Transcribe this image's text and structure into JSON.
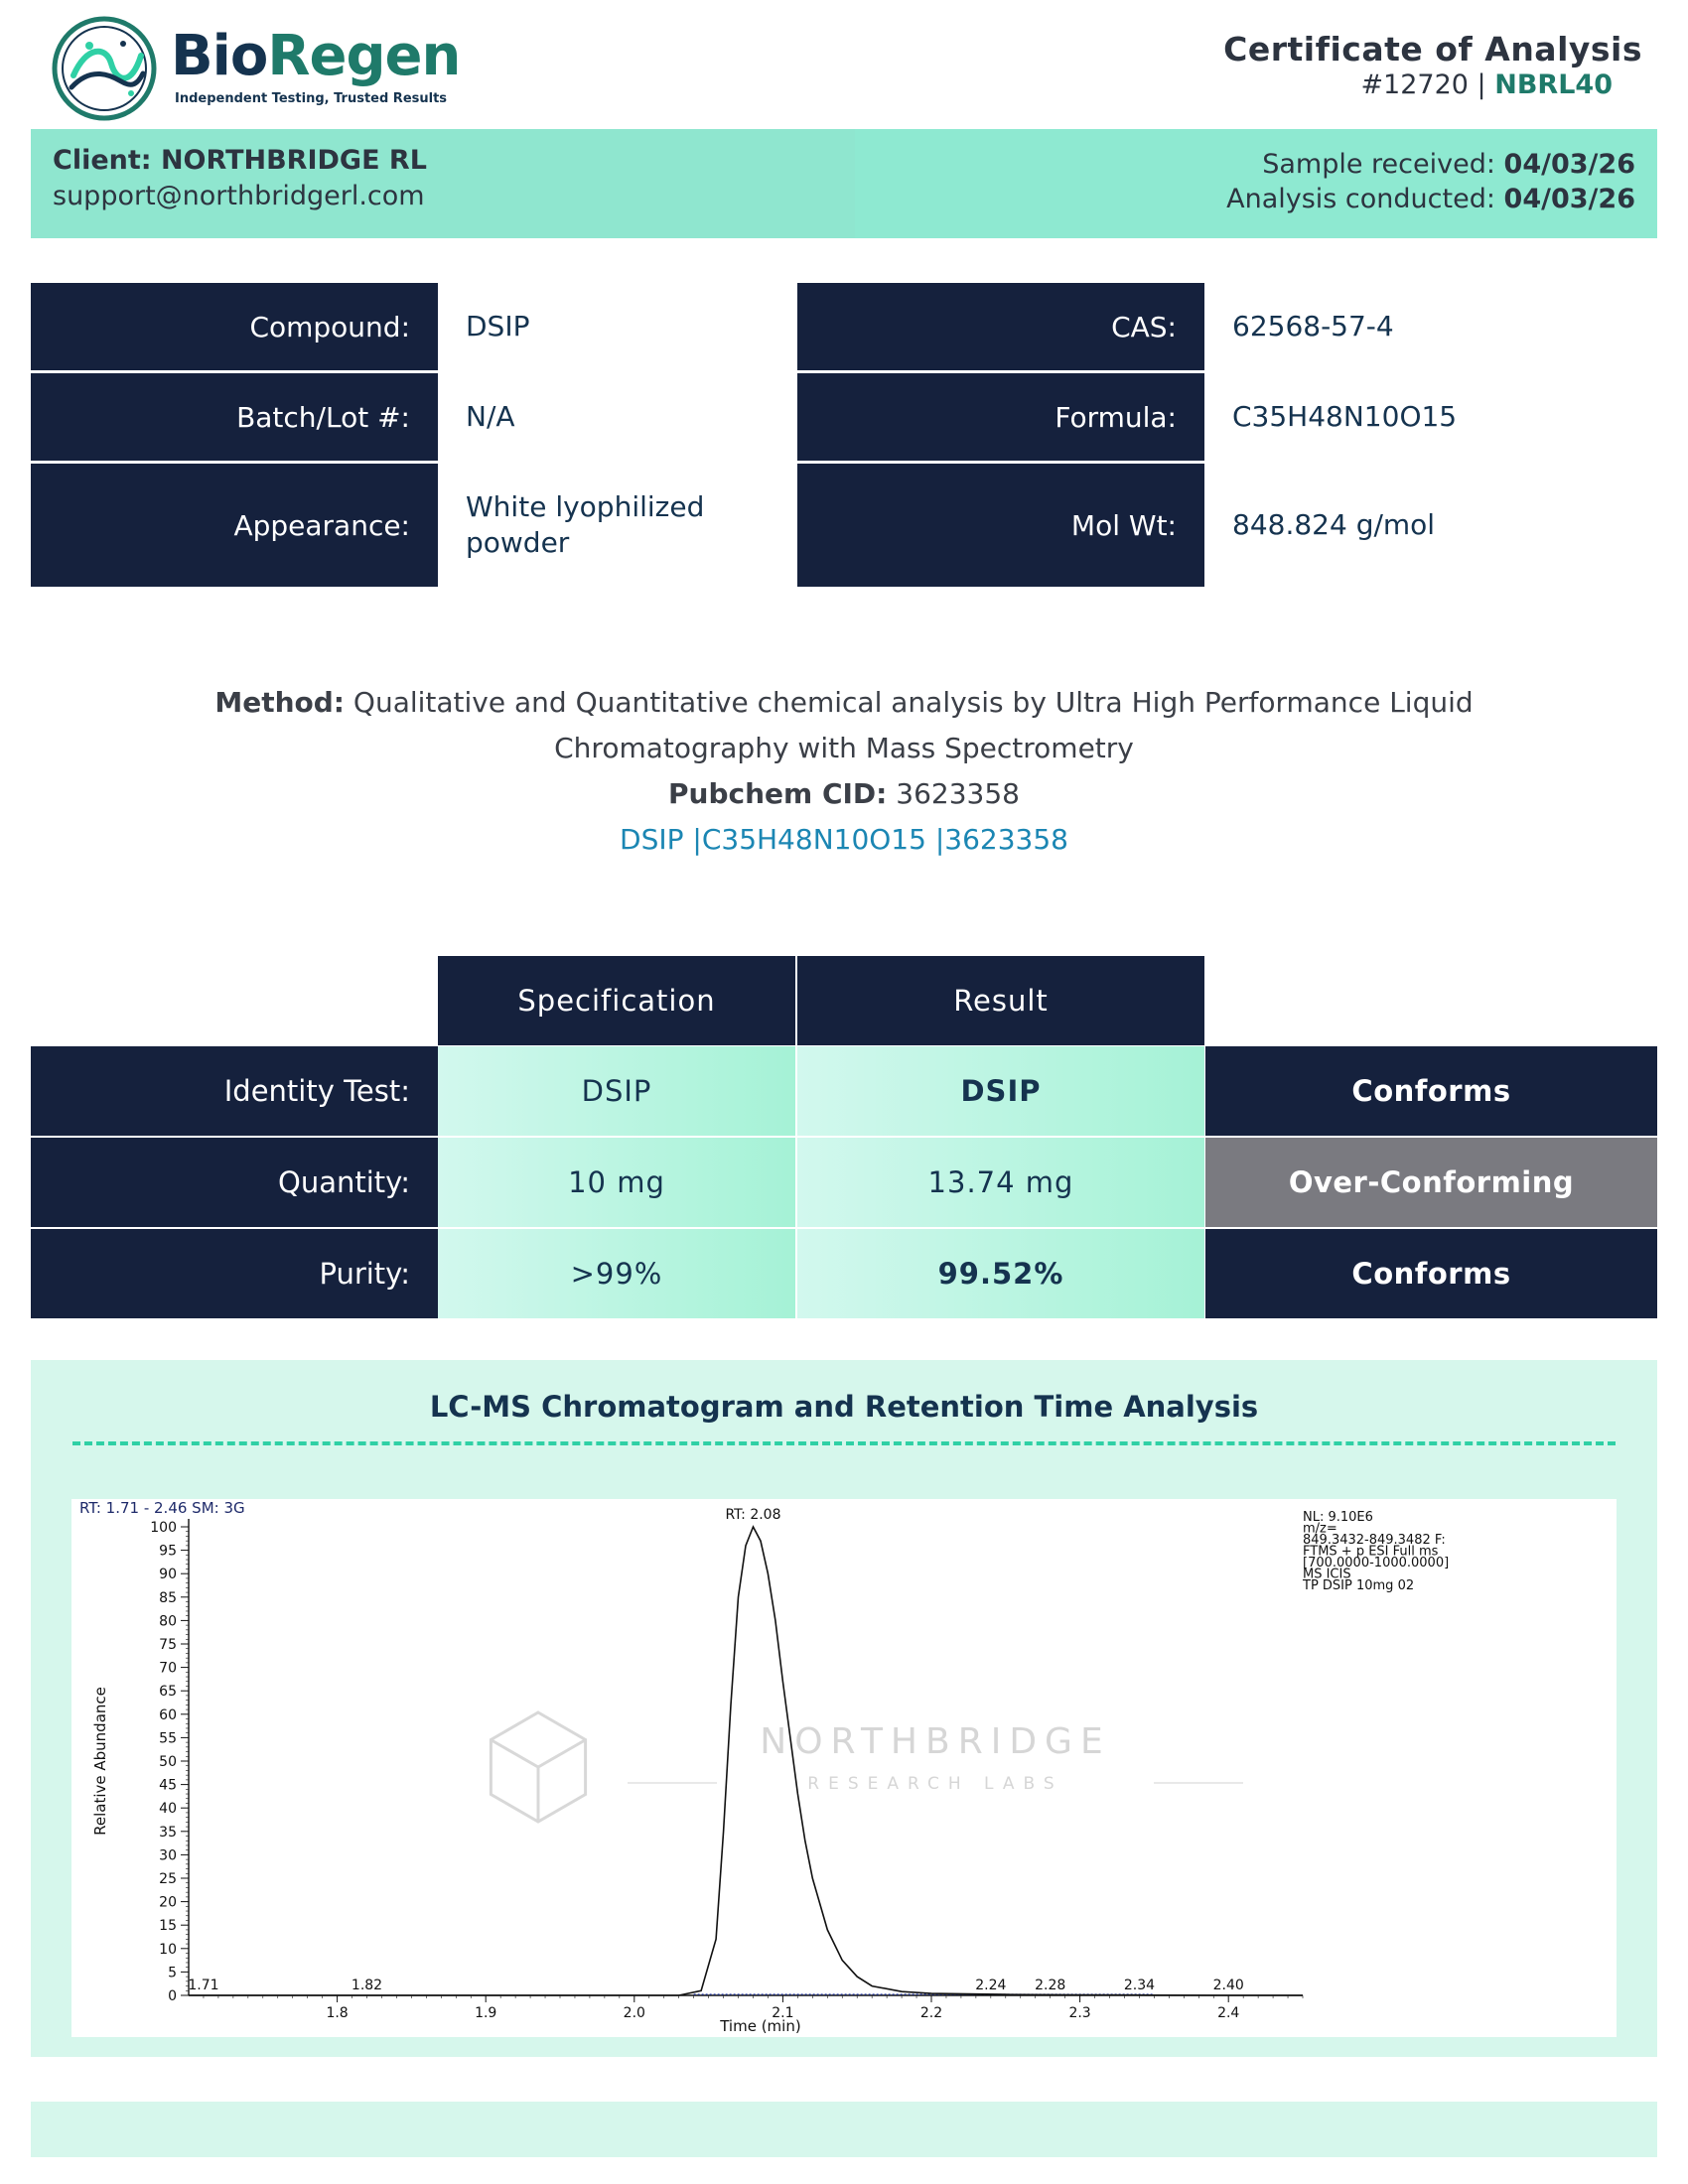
{
  "brand": {
    "name_part1": "Bio",
    "name_part2": "Regen",
    "tagline": "Independent Testing, Trusted Results",
    "colors": {
      "navy": "#15213d",
      "teal": "#1f7a6a",
      "mint": "#8fe6cf",
      "link": "#1b86b3"
    }
  },
  "certificate": {
    "title": "Certificate of Analysis",
    "number": "#12720",
    "separator": "|",
    "code": "NBRL40"
  },
  "client": {
    "name": "Client: NORTHBRIDGE RL",
    "email": "support@northbridgerl.com",
    "sample_received_label": "Sample received:",
    "sample_received_value": "04/03/26",
    "analysis_label": "Analysis conducted:",
    "analysis_value": "04/03/26"
  },
  "info": {
    "compound_label": "Compound:",
    "compound_value": "DSIP",
    "batch_label": "Batch/Lot #:",
    "batch_value": "N/A",
    "appearance_label": "Appearance:",
    "appearance_value": "White lyophilized powder",
    "cas_label": "CAS:",
    "cas_value": "62568-57-4",
    "formula_label": "Formula:",
    "formula_value": "C35H48N10O15",
    "molwt_label": "Mol Wt:",
    "molwt_value": "848.824 g/mol"
  },
  "method": {
    "label": "Method:",
    "text_line1": "Qualitative and Quantitative chemical analysis by Ultra High Performance Liquid",
    "text_line2": "Chromatography with Mass Spectrometry",
    "pubchem_label": "Pubchem CID:",
    "pubchem_value": "3623358",
    "link_text": "DSIP |C35H48N10O15 |3623358"
  },
  "results": {
    "header_spec": "Specification",
    "header_result": "Result",
    "rows": [
      {
        "label": "Identity Test:",
        "spec": "DSIP",
        "result": "DSIP",
        "status": "Conforms"
      },
      {
        "label": "Quantity:",
        "spec": "10 mg",
        "result": "13.74 mg",
        "status": "Over-Conforming"
      },
      {
        "label": "Purity:",
        "spec": ">99%",
        "result": "99.52%",
        "status": "Conforms"
      }
    ]
  },
  "chromatogram": {
    "section_title": "LC-MS Chromatogram and Retention Time Analysis",
    "watermark_title": "NORTHBRIDGE",
    "watermark_sub": "RESEARCH LABS",
    "icon": "hexagon-cube-icon"
  },
  "chart_data": {
    "type": "line",
    "title": "",
    "xlabel": "Time (min)",
    "ylabel": "Relative Abundance",
    "xlim": [
      1.7,
      2.45
    ],
    "ylim": [
      0,
      100
    ],
    "x_ticks": [
      "1.8",
      "1.9",
      "2.0",
      "2.1",
      "2.2",
      "2.3",
      "2.4"
    ],
    "y_ticks": [
      "0",
      "5",
      "10",
      "15",
      "20",
      "25",
      "30",
      "35",
      "40",
      "45",
      "50",
      "55",
      "60",
      "65",
      "70",
      "75",
      "80",
      "85",
      "90",
      "95",
      "100"
    ],
    "header_left": "RT: 1.71 - 2.46   SM: 3G",
    "info_lines": [
      "NL: 9.10E6",
      "m/z=",
      "849.3432-849.3482 F:",
      "FTMS + p ESI Full ms",
      "[700.0000-1000.0000]",
      "MS  ICIS",
      "TP DSIP 10mg 02"
    ],
    "peak_label": "RT: 2.08",
    "annotations": [
      {
        "x": 1.71,
        "y": 0,
        "label": "1.71"
      },
      {
        "x": 1.82,
        "y": 0,
        "label": "1.82"
      },
      {
        "x": 2.24,
        "y": 0,
        "label": "2.24"
      },
      {
        "x": 2.28,
        "y": 0,
        "label": "2.28"
      },
      {
        "x": 2.34,
        "y": 0,
        "label": "2.34"
      },
      {
        "x": 2.4,
        "y": 0,
        "label": "2.40"
      }
    ],
    "series": [
      {
        "x": [
          1.7,
          1.75,
          1.8,
          1.85,
          1.9,
          1.95,
          2.0,
          2.03,
          2.045,
          2.055,
          2.06,
          2.065,
          2.07,
          2.075,
          2.08,
          2.085,
          2.09,
          2.095,
          2.1,
          2.105,
          2.11,
          2.115,
          2.12,
          2.13,
          2.14,
          2.15,
          2.16,
          2.18,
          2.2,
          2.25,
          2.3,
          2.35,
          2.4,
          2.45
        ],
        "y": [
          0,
          0,
          0,
          0,
          0,
          0,
          0,
          0,
          1,
          12,
          35,
          62,
          85,
          96,
          100,
          97,
          90,
          80,
          67,
          55,
          43,
          33,
          25,
          14,
          7.5,
          4,
          2,
          0.8,
          0.4,
          0.2,
          0.1,
          0.05,
          0,
          0
        ]
      }
    ]
  }
}
